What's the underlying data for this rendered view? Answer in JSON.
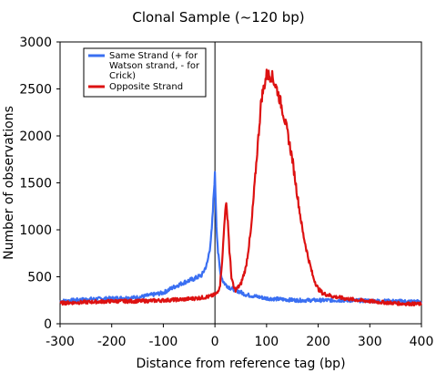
{
  "chart_data": {
    "type": "line",
    "title": "Clonal Sample (~120 bp)",
    "xlabel": "Distance from reference tag (bp)",
    "ylabel": "Number of observations",
    "xlim": [
      -300,
      400
    ],
    "ylim": [
      0,
      3000
    ],
    "xticks": [
      -300,
      -200,
      -100,
      0,
      100,
      200,
      300,
      400
    ],
    "yticks": [
      0,
      500,
      1000,
      1500,
      2000,
      2500,
      3000
    ],
    "grid": false,
    "legend_position": "top-left",
    "series": [
      {
        "name": "Same Strand (+ for Watson strand, - for Crick)",
        "legend_lines": [
          "Same Strand (+ for",
          "Watson strand, - for",
          "Crick)"
        ],
        "color": "#3a6ff2",
        "x": [
          -300,
          -250,
          -200,
          -150,
          -100,
          -80,
          -60,
          -40,
          -25,
          -15,
          -10,
          -6,
          -3,
          -1,
          0,
          1,
          3,
          6,
          10,
          15,
          20,
          30,
          40,
          60,
          80,
          100,
          130,
          160,
          200,
          250,
          300,
          350,
          400
        ],
        "y": [
          240,
          260,
          270,
          280,
          330,
          390,
          440,
          480,
          520,
          640,
          800,
          1000,
          1300,
          1520,
          1580,
          1400,
          1050,
          760,
          560,
          460,
          420,
          380,
          360,
          310,
          290,
          270,
          260,
          250,
          250,
          250,
          245,
          240,
          235
        ]
      },
      {
        "name": "Opposite Strand",
        "legend_lines": [
          "Opposite Strand"
        ],
        "color": "#dd1111",
        "x": [
          -300,
          -250,
          -200,
          -150,
          -100,
          -60,
          -30,
          -10,
          0,
          5,
          10,
          15,
          18,
          20,
          22,
          25,
          28,
          32,
          36,
          40,
          50,
          60,
          70,
          80,
          90,
          100,
          110,
          120,
          130,
          140,
          150,
          160,
          170,
          180,
          190,
          200,
          210,
          230,
          250,
          280,
          320,
          360,
          400
        ],
        "y": [
          220,
          230,
          240,
          240,
          250,
          260,
          275,
          290,
          310,
          330,
          420,
          750,
          1050,
          1230,
          1250,
          1100,
          780,
          500,
          390,
          360,
          420,
          600,
          1000,
          1700,
          2400,
          2650,
          2640,
          2500,
          2300,
          2050,
          1750,
          1350,
          980,
          720,
          500,
          370,
          320,
          290,
          270,
          250,
          230,
          215,
          210
        ]
      }
    ]
  }
}
